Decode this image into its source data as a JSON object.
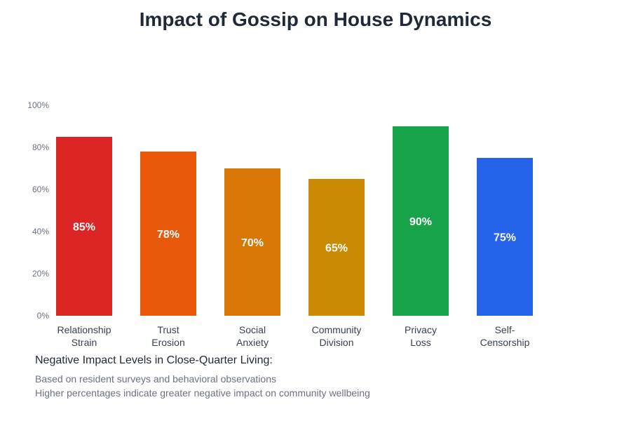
{
  "chart_data": {
    "type": "bar",
    "title": "Impact of Gossip on House Dynamics",
    "categories": [
      [
        "Relationship",
        "Strain"
      ],
      [
        "Trust",
        "Erosion"
      ],
      [
        "Social",
        "Anxiety"
      ],
      [
        "Community",
        "Division"
      ],
      [
        "Privacy",
        "Loss"
      ],
      [
        "Self-",
        "Censorship"
      ]
    ],
    "values": [
      85,
      78,
      70,
      65,
      90,
      75
    ],
    "colors": [
      "#dc2626",
      "#ea580c",
      "#d97706",
      "#ca8a04",
      "#16a34a",
      "#2563eb"
    ],
    "data_labels": [
      "85%",
      "78%",
      "70%",
      "65%",
      "90%",
      "75%"
    ],
    "yticks": [
      "0%",
      "20%",
      "40%",
      "60%",
      "80%",
      "100%"
    ],
    "ylim": [
      0,
      100
    ],
    "grid": false,
    "xlabel": "",
    "ylabel": ""
  },
  "notes": {
    "heading": "Negative Impact Levels in Close-Quarter Living:",
    "line1": "Based on resident surveys and behavioral observations",
    "line2": "Higher percentages indicate greater negative impact on community wellbeing"
  }
}
